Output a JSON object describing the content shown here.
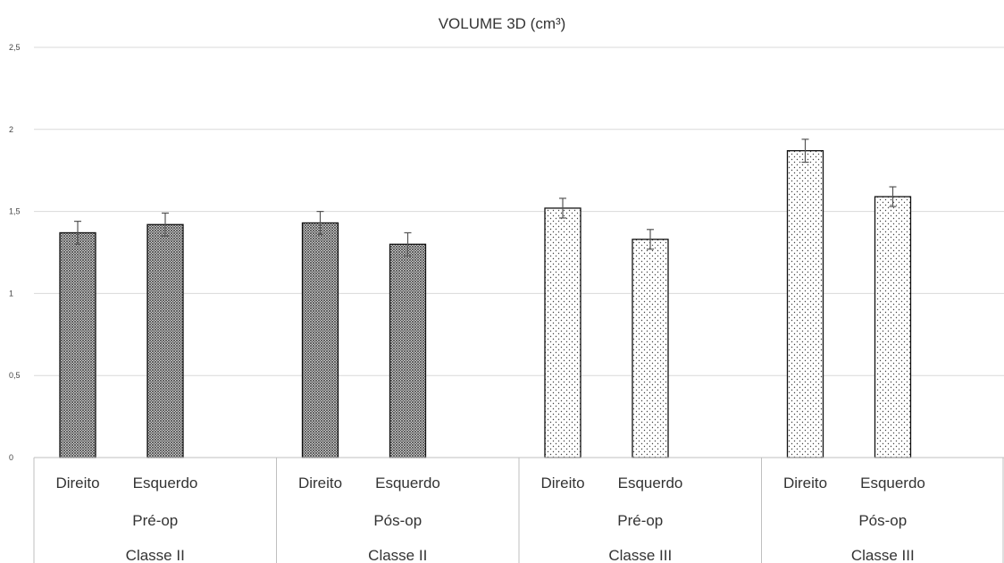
{
  "chart_data": {
    "type": "bar",
    "title": "VOLUME 3D (cm³)",
    "xlabel": "",
    "ylabel": "",
    "ylim": [
      0,
      2.5
    ],
    "yticks": [
      {
        "value": 0,
        "label": "0"
      },
      {
        "value": 0.5,
        "label": "0,5"
      },
      {
        "value": 1,
        "label": "1"
      },
      {
        "value": 1.5,
        "label": "1,5"
      },
      {
        "value": 2,
        "label": "2"
      },
      {
        "value": 2.5,
        "label": "2,5"
      }
    ],
    "grid": true,
    "legend": "none",
    "categories": [
      {
        "side": "Direito",
        "period": "Pré-op",
        "class": "Classe II"
      },
      {
        "side": "Esquerdo",
        "period": "Pré-op",
        "class": "Classe II"
      },
      {
        "side": "Direito",
        "period": "Pós-op",
        "class": "Classe II"
      },
      {
        "side": "Esquerdo",
        "period": "Pós-op",
        "class": "Classe II"
      },
      {
        "side": "Direito",
        "period": "Pré-op",
        "class": "Classe III"
      },
      {
        "side": "Esquerdo",
        "period": "Pré-op",
        "class": "Classe III"
      },
      {
        "side": "Direito",
        "period": "Pós-op",
        "class": "Classe III"
      },
      {
        "side": "Esquerdo",
        "period": "Pós-op",
        "class": "Classe III"
      }
    ],
    "groups": [
      {
        "period": "Pré-op",
        "class": "Classe II"
      },
      {
        "period": "Pós-op",
        "class": "Classe II"
      },
      {
        "period": "Pré-op",
        "class": "Classe III"
      },
      {
        "period": "Pós-op",
        "class": "Classe III"
      }
    ],
    "values": [
      1.37,
      1.42,
      1.43,
      1.3,
      1.52,
      1.33,
      1.87,
      1.59
    ],
    "error": [
      0.07,
      0.07,
      0.07,
      0.07,
      0.06,
      0.06,
      0.07,
      0.06
    ],
    "patterns": [
      "crosshatch",
      "crosshatch",
      "crosshatch",
      "crosshatch",
      "dots",
      "dots",
      "dots",
      "dots"
    ]
  }
}
